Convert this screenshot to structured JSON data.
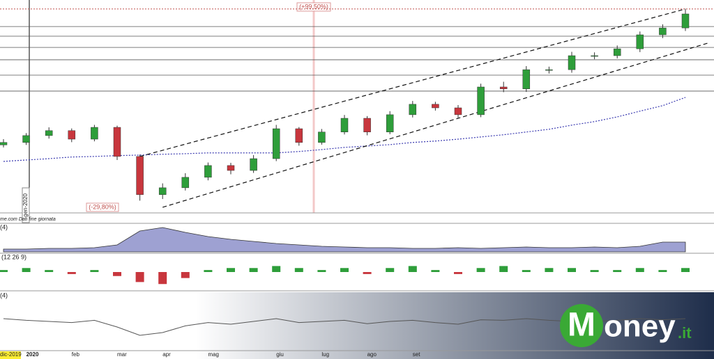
{
  "chart_data": {
    "type": "candlestick",
    "annotations": {
      "high": "(+99,50%)",
      "low": "(-29,80%)",
      "cursor": "gen-2020",
      "source": "me.com  Dati fine giornata"
    },
    "categories": [
      "dic-2019",
      "2020",
      null,
      "feb",
      null,
      "mar",
      null,
      "apr",
      null,
      "mag",
      null,
      null,
      "giu",
      null,
      "lug",
      null,
      "ago",
      null,
      "set",
      null,
      null,
      null,
      null,
      null,
      null,
      null,
      null,
      null,
      null,
      null,
      null
    ],
    "open": [
      90.5,
      91.4,
      93.9,
      95.7,
      92.6,
      96.9,
      86.3,
      72.4,
      74.9,
      78.7,
      83.0,
      81.2,
      85.5,
      96.4,
      91.4,
      95.2,
      100.2,
      95.2,
      101.5,
      105.3,
      104.0,
      101.5,
      111.6,
      110.9,
      117.9,
      117.9,
      123.0,
      123.0,
      125.5,
      130.6,
      133.1
    ],
    "high": [
      92.6,
      94.8,
      96.9,
      96.5,
      97.8,
      97.5,
      87.0,
      76.5,
      80.2,
      84.1,
      84.0,
      86.8,
      97.8,
      97.0,
      96.3,
      101.4,
      101.0,
      102.8,
      106.5,
      106.2,
      105.0,
      112.8,
      113.5,
      119.2,
      119.0,
      124.4,
      124.2,
      126.7,
      131.8,
      134.4,
      140.0
    ],
    "low": [
      89.6,
      90.5,
      92.8,
      91.5,
      91.8,
      85.0,
      70.2,
      70.8,
      73.9,
      77.6,
      79.8,
      80.3,
      84.6,
      90.2,
      90.6,
      94.3,
      94.0,
      94.4,
      100.5,
      103.0,
      100.2,
      100.6,
      109.7,
      109.8,
      116.5,
      116.8,
      121.7,
      122.0,
      124.3,
      129.4,
      132.0
    ],
    "close": [
      91.4,
      93.9,
      95.7,
      92.6,
      96.9,
      86.3,
      72.4,
      74.9,
      78.7,
      83.0,
      81.2,
      85.5,
      96.4,
      91.4,
      95.2,
      100.2,
      95.2,
      101.5,
      105.3,
      104.0,
      101.5,
      111.6,
      110.9,
      117.9,
      117.9,
      123.0,
      123.0,
      125.5,
      130.6,
      133.1,
      138.2
    ],
    "up_color": "#2e9e3a",
    "down_color": "#c8363d",
    "ylim": [
      66,
      142
    ],
    "ma_long": {
      "color": "#3a3ab0",
      "values": [
        84.5,
        85.0,
        85.5,
        86.1,
        86.3,
        86.6,
        86.8,
        87.1,
        87.3,
        87.6,
        87.6,
        87.6,
        87.6,
        88.1,
        88.8,
        89.6,
        90.1,
        90.6,
        91.4,
        91.9,
        92.6,
        93.4,
        94.2,
        95.2,
        96.2,
        97.7,
        99.0,
        100.7,
        102.8,
        104.8,
        107.8
      ]
    },
    "channel": {
      "color": "#111111",
      "upper": {
        "x": [
          6,
          30
        ],
        "values": [
          86.3,
          140.0
        ]
      },
      "lower": {
        "x": [
          7,
          31
        ],
        "values": [
          67.8,
          127.6
        ]
      }
    },
    "high_level": 140.0,
    "high_level_color": "#c0504d",
    "levels": [
      133.6,
      130.1,
      126.0,
      121.5,
      115.9,
      110.1
    ],
    "level_color": "#555555",
    "volume": {
      "label": "(4)",
      "color": "#9ea1d2",
      "ylim": [
        0,
        40
      ],
      "values": [
        4,
        4,
        5,
        5,
        6,
        10,
        30,
        35,
        28,
        22,
        18,
        15,
        12,
        10,
        8,
        7,
        6,
        6,
        5,
        5,
        6,
        5,
        6,
        7,
        6,
        6,
        7,
        6,
        8,
        14,
        14
      ]
    },
    "macd": {
      "label": "(12 26 9)",
      "ylim": [
        -8,
        8
      ],
      "values": [
        1,
        2,
        1,
        -1,
        1,
        -2,
        -5,
        -6,
        -3,
        1,
        2,
        2,
        3,
        2,
        1,
        2,
        -1,
        2,
        3,
        1,
        -1,
        2,
        3,
        1,
        2,
        2,
        1,
        1,
        2,
        1,
        2
      ]
    },
    "oscillator": {
      "label": "(4)",
      "color": "#555555",
      "ylim": [
        0,
        100
      ],
      "values": [
        55,
        52,
        50,
        48,
        52,
        40,
        25,
        30,
        42,
        48,
        45,
        50,
        55,
        48,
        50,
        52,
        46,
        50,
        52,
        48,
        45,
        53,
        52,
        55,
        52,
        50,
        50,
        52,
        55,
        53,
        55
      ]
    }
  },
  "logo": {
    "initial": "M",
    "rest": "oney",
    "suffix": ".it"
  }
}
